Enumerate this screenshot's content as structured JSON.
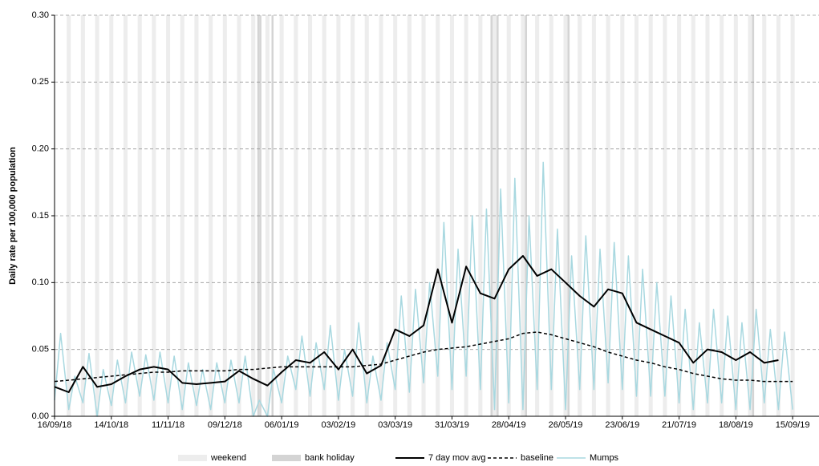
{
  "chart_data": {
    "type": "line",
    "y_label": "Daily rate per 100,000 population",
    "xlim": [
      "16/09/18",
      "28/09/19"
    ],
    "xticks": [
      "16/09/18",
      "14/10/18",
      "11/11/18",
      "09/12/18",
      "06/01/19",
      "03/02/19",
      "03/03/19",
      "31/03/19",
      "28/04/19",
      "26/05/19",
      "23/06/19",
      "21/07/19",
      "18/08/19",
      "15/09/19"
    ],
    "ylim": [
      0,
      0.3
    ],
    "yticks": [
      {
        "value": 0,
        "label": "0.00"
      },
      {
        "value": 0.05,
        "label": "0.05"
      },
      {
        "value": 0.1,
        "label": "0.10"
      },
      {
        "value": 0.15,
        "label": "0.15"
      },
      {
        "value": 0.2,
        "label": "0.20"
      },
      {
        "value": 0.25,
        "label": "0.25"
      },
      {
        "value": 0.3,
        "label": "0.30"
      }
    ],
    "grid": true,
    "weekends": {
      "name": "weekend",
      "color": "#ededed",
      "days": 2,
      "dates": [
        "22/09/18",
        "29/09/18",
        "06/10/18",
        "13/10/18",
        "20/10/18",
        "27/10/18",
        "03/11/18",
        "10/11/18",
        "17/11/18",
        "24/11/18",
        "01/12/18",
        "08/12/18",
        "15/12/18",
        "22/12/18",
        "29/12/18",
        "05/01/19",
        "12/01/19",
        "19/01/19",
        "26/01/19",
        "02/02/19",
        "09/02/19",
        "16/02/19",
        "23/02/19",
        "02/03/19",
        "09/03/19",
        "16/03/19",
        "23/03/19",
        "30/03/19",
        "06/04/19",
        "13/04/19",
        "20/04/19",
        "27/04/19",
        "04/05/19",
        "11/05/19",
        "18/05/19",
        "25/05/19",
        "01/06/19",
        "08/06/19",
        "15/06/19",
        "22/06/19",
        "29/06/19",
        "06/07/19",
        "13/07/19",
        "20/07/19",
        "27/07/19",
        "03/08/19",
        "10/08/19",
        "17/08/19",
        "24/08/19",
        "31/08/19",
        "07/09/19",
        "14/09/19"
      ]
    },
    "bank_holidays": {
      "name": "bank holiday",
      "color": "#d4d4d4",
      "days": 1,
      "dates": [
        "25/12/18",
        "26/12/18",
        "01/01/19",
        "19/04/19",
        "22/04/19",
        "06/05/19",
        "27/05/19",
        "26/08/19"
      ]
    },
    "series": [
      {
        "name": "Mumps",
        "color": "#a8d8e0",
        "dash": "solid",
        "width": 1.5,
        "x": [
          "16/09/18",
          "19/09/18",
          "23/09/18",
          "26/09/18",
          "30/09/18",
          "03/10/18",
          "07/10/18",
          "10/10/18",
          "14/10/18",
          "17/10/18",
          "21/10/18",
          "24/10/18",
          "28/10/18",
          "31/10/18",
          "04/11/18",
          "07/11/18",
          "11/11/18",
          "14/11/18",
          "18/11/18",
          "21/11/18",
          "25/11/18",
          "28/11/18",
          "02/12/18",
          "05/12/18",
          "09/12/18",
          "12/12/18",
          "16/12/18",
          "19/12/18",
          "23/12/18",
          "26/12/18",
          "30/12/18",
          "02/01/19",
          "06/01/19",
          "09/01/19",
          "13/01/19",
          "16/01/19",
          "20/01/19",
          "23/01/19",
          "27/01/19",
          "30/01/19",
          "03/02/19",
          "06/02/19",
          "10/02/19",
          "13/02/19",
          "17/02/19",
          "20/02/19",
          "24/02/19",
          "27/02/19",
          "03/03/19",
          "06/03/19",
          "10/03/19",
          "13/03/19",
          "17/03/19",
          "20/03/19",
          "24/03/19",
          "27/03/19",
          "31/03/19",
          "03/04/19",
          "07/04/19",
          "10/04/19",
          "14/04/19",
          "17/04/19",
          "21/04/19",
          "24/04/19",
          "28/04/19",
          "01/05/19",
          "05/05/19",
          "08/05/19",
          "12/05/19",
          "15/05/19",
          "19/05/19",
          "22/05/19",
          "26/05/19",
          "29/05/19",
          "02/06/19",
          "05/06/19",
          "09/06/19",
          "12/06/19",
          "16/06/19",
          "19/06/19",
          "23/06/19",
          "26/06/19",
          "30/06/19",
          "03/07/19",
          "07/07/19",
          "10/07/19",
          "14/07/19",
          "17/07/19",
          "21/07/19",
          "24/07/19",
          "28/07/19",
          "31/07/19",
          "04/08/19",
          "07/08/19",
          "11/08/19",
          "14/08/19",
          "18/08/19",
          "21/08/19",
          "25/08/19",
          "28/08/19",
          "01/09/19",
          "04/09/19",
          "08/09/19",
          "11/09/19",
          "15/09/19"
        ],
        "values": [
          0.012,
          0.062,
          0.005,
          0.03,
          0.01,
          0.047,
          0.0,
          0.035,
          0.008,
          0.042,
          0.01,
          0.048,
          0.015,
          0.046,
          0.012,
          0.048,
          0.01,
          0.045,
          0.005,
          0.04,
          0.008,
          0.035,
          0.005,
          0.04,
          0.01,
          0.042,
          0.01,
          0.045,
          0.0,
          0.012,
          0.0,
          0.035,
          0.01,
          0.045,
          0.02,
          0.06,
          0.015,
          0.055,
          0.02,
          0.068,
          0.012,
          0.05,
          0.015,
          0.07,
          0.01,
          0.045,
          0.012,
          0.055,
          0.02,
          0.09,
          0.018,
          0.095,
          0.025,
          0.1,
          0.03,
          0.145,
          0.02,
          0.125,
          0.03,
          0.15,
          0.02,
          0.155,
          0.005,
          0.17,
          0.01,
          0.178,
          0.005,
          0.15,
          0.02,
          0.19,
          0.02,
          0.14,
          0.005,
          0.12,
          0.02,
          0.135,
          0.02,
          0.125,
          0.025,
          0.13,
          0.02,
          0.12,
          0.015,
          0.11,
          0.015,
          0.1,
          0.015,
          0.09,
          0.01,
          0.08,
          0.005,
          0.07,
          0.01,
          0.08,
          0.01,
          0.075,
          0.005,
          0.07,
          0.005,
          0.08,
          0.01,
          0.065,
          0.005,
          0.063,
          0.005
        ]
      },
      {
        "name": "baseline",
        "color": "#000000",
        "dash": "dashed",
        "width": 1.5,
        "x": [
          "16/09/18",
          "23/09/18",
          "30/09/18",
          "07/10/18",
          "14/10/18",
          "21/10/18",
          "28/10/18",
          "04/11/18",
          "11/11/18",
          "18/11/18",
          "25/11/18",
          "02/12/18",
          "09/12/18",
          "16/12/18",
          "23/12/18",
          "30/12/18",
          "06/01/19",
          "13/01/19",
          "20/01/19",
          "27/01/19",
          "03/02/19",
          "10/02/19",
          "17/02/19",
          "24/02/19",
          "03/03/19",
          "10/03/19",
          "17/03/19",
          "24/03/19",
          "31/03/19",
          "07/04/19",
          "14/04/19",
          "21/04/19",
          "28/04/19",
          "05/05/19",
          "12/05/19",
          "19/05/19",
          "26/05/19",
          "02/06/19",
          "09/06/19",
          "16/06/19",
          "23/06/19",
          "30/06/19",
          "07/07/19",
          "14/07/19",
          "21/07/19",
          "28/07/19",
          "04/08/19",
          "11/08/19",
          "18/08/19",
          "25/08/19",
          "01/09/19",
          "08/09/19",
          "15/09/19"
        ],
        "values": [
          0.026,
          0.027,
          0.028,
          0.029,
          0.03,
          0.031,
          0.032,
          0.033,
          0.033,
          0.034,
          0.034,
          0.034,
          0.034,
          0.035,
          0.035,
          0.036,
          0.037,
          0.037,
          0.037,
          0.037,
          0.037,
          0.037,
          0.038,
          0.039,
          0.042,
          0.045,
          0.048,
          0.05,
          0.051,
          0.052,
          0.054,
          0.056,
          0.058,
          0.062,
          0.063,
          0.061,
          0.058,
          0.055,
          0.052,
          0.048,
          0.045,
          0.042,
          0.04,
          0.037,
          0.035,
          0.032,
          0.03,
          0.028,
          0.027,
          0.027,
          0.026,
          0.026,
          0.026
        ]
      },
      {
        "name": "7 day mov avg",
        "color": "#000000",
        "dash": "solid",
        "width": 2,
        "x": [
          "16/09/18",
          "23/09/18",
          "30/09/18",
          "07/10/18",
          "14/10/18",
          "21/10/18",
          "28/10/18",
          "04/11/18",
          "11/11/18",
          "18/11/18",
          "25/11/18",
          "02/12/18",
          "09/12/18",
          "16/12/18",
          "23/12/18",
          "30/12/18",
          "06/01/19",
          "13/01/19",
          "20/01/19",
          "27/01/19",
          "03/02/19",
          "10/02/19",
          "17/02/19",
          "24/02/19",
          "03/03/19",
          "10/03/19",
          "17/03/19",
          "24/03/19",
          "31/03/19",
          "07/04/19",
          "14/04/19",
          "21/04/19",
          "28/04/19",
          "05/05/19",
          "12/05/19",
          "19/05/19",
          "26/05/19",
          "02/06/19",
          "09/06/19",
          "16/06/19",
          "23/06/19",
          "30/06/19",
          "07/07/19",
          "14/07/19",
          "21/07/19",
          "28/07/19",
          "04/08/19",
          "11/08/19",
          "18/08/19",
          "25/08/19",
          "01/09/19",
          "08/09/19",
          "15/09/19"
        ],
        "values": [
          0.022,
          0.018,
          0.037,
          0.022,
          0.024,
          0.03,
          0.035,
          0.037,
          0.035,
          0.025,
          0.024,
          0.025,
          0.026,
          0.034,
          0.028,
          0.023,
          0.033,
          0.042,
          0.04,
          0.048,
          0.035,
          0.05,
          0.032,
          0.038,
          0.065,
          0.06,
          0.068,
          0.11,
          0.07,
          0.112,
          0.092,
          0.088,
          0.11,
          0.12,
          0.105,
          0.11,
          0.1,
          0.09,
          0.082,
          0.095,
          0.092,
          0.07,
          0.065,
          0.06,
          0.055,
          0.04,
          0.05,
          0.048,
          0.042,
          0.048,
          0.04,
          0.042,
          null
        ]
      }
    ],
    "legend_order": [
      "weekend",
      "bank holiday",
      "7 day mov avg",
      "baseline",
      "Mumps"
    ]
  }
}
